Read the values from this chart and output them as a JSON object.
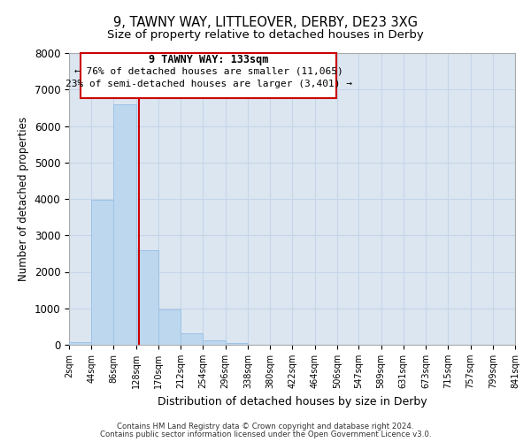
{
  "title": "9, TAWNY WAY, LITTLEOVER, DERBY, DE23 3XG",
  "subtitle": "Size of property relative to detached houses in Derby",
  "xlabel": "Distribution of detached houses by size in Derby",
  "ylabel": "Number of detached properties",
  "bar_color": "#bdd7ee",
  "bar_edge_color": "#9dc3e6",
  "background_color": "#dce6f1",
  "grid_color": "#c5d5e8",
  "annotation_box_color": "#cc0000",
  "property_line_color": "#cc0000",
  "property_value": 133,
  "annotation_title": "9 TAWNY WAY: 133sqm",
  "annotation_line1": "← 76% of detached houses are smaller (11,065)",
  "annotation_line2": "23% of semi-detached houses are larger (3,401) →",
  "footer_line1": "Contains HM Land Registry data © Crown copyright and database right 2024.",
  "footer_line2": "Contains public sector information licensed under the Open Government Licence v3.0.",
  "bin_edges": [
    2,
    44,
    86,
    128,
    170,
    212,
    254,
    296,
    338,
    380,
    422,
    464,
    506,
    547,
    589,
    631,
    673,
    715,
    757,
    799,
    841
  ],
  "bin_counts": [
    75,
    3970,
    6600,
    2600,
    960,
    320,
    120,
    50,
    0,
    0,
    0,
    0,
    0,
    0,
    0,
    0,
    0,
    0,
    0,
    0
  ],
  "ylim": [
    0,
    8000
  ],
  "yticks": [
    0,
    1000,
    2000,
    3000,
    4000,
    5000,
    6000,
    7000,
    8000
  ],
  "tick_labels": [
    "2sqm",
    "44sqm",
    "86sqm",
    "128sqm",
    "170sqm",
    "212sqm",
    "254sqm",
    "296sqm",
    "338sqm",
    "380sqm",
    "422sqm",
    "464sqm",
    "506sqm",
    "547sqm",
    "589sqm",
    "631sqm",
    "673sqm",
    "715sqm",
    "757sqm",
    "799sqm",
    "841sqm"
  ]
}
